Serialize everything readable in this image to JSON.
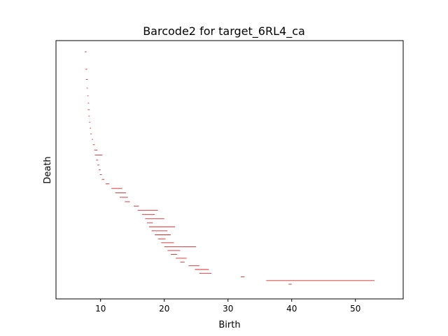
{
  "chart_data": {
    "type": "barcode",
    "title": "Barcode2 for target_6RL4_ca",
    "xlabel": "Birth",
    "ylabel": "Death",
    "xlim": [
      3,
      57.5
    ],
    "x_ticks": [
      10,
      20,
      30,
      40,
      50
    ],
    "y_ticks": [],
    "bar_color": "#d62728",
    "bars_count_description": "persistence bars stacked vertically, each bar spans [birth, death-visual-end]",
    "bars": [
      {
        "birth": 7.5,
        "end": 7.8
      },
      {
        "birth": 7.6,
        "end": 7.9
      },
      {
        "birth": 7.7,
        "end": 8.0
      },
      {
        "birth": 7.8,
        "end": 8.0
      },
      {
        "birth": 7.9,
        "end": 8.1
      },
      {
        "birth": 8.0,
        "end": 8.2
      },
      {
        "birth": 8.0,
        "end": 8.3
      },
      {
        "birth": 8.1,
        "end": 8.3
      },
      {
        "birth": 8.2,
        "end": 8.4
      },
      {
        "birth": 8.3,
        "end": 8.5
      },
      {
        "birth": 8.4,
        "end": 8.6
      },
      {
        "birth": 8.6,
        "end": 8.8
      },
      {
        "birth": 8.8,
        "end": 9.1
      },
      {
        "birth": 9.0,
        "end": 9.5
      },
      {
        "birth": 9.1,
        "end": 10.3
      },
      {
        "birth": 9.3,
        "end": 9.6
      },
      {
        "birth": 9.5,
        "end": 9.8
      },
      {
        "birth": 9.7,
        "end": 10.0
      },
      {
        "birth": 9.9,
        "end": 10.2
      },
      {
        "birth": 10.2,
        "end": 10.6
      },
      {
        "birth": 10.8,
        "end": 11.4
      },
      {
        "birth": 11.7,
        "end": 13.4
      },
      {
        "birth": 12.3,
        "end": 14.0
      },
      {
        "birth": 13.0,
        "end": 14.3
      },
      {
        "birth": 13.8,
        "end": 14.6
      },
      {
        "birth": 15.2,
        "end": 16.0
      },
      {
        "birth": 15.8,
        "end": 19.0
      },
      {
        "birth": 16.5,
        "end": 18.5
      },
      {
        "birth": 17.0,
        "end": 20.0
      },
      {
        "birth": 17.3,
        "end": 18.2
      },
      {
        "birth": 17.6,
        "end": 21.7
      },
      {
        "birth": 18.0,
        "end": 20.5
      },
      {
        "birth": 18.5,
        "end": 21.0
      },
      {
        "birth": 19.0,
        "end": 20.2
      },
      {
        "birth": 19.5,
        "end": 21.5
      },
      {
        "birth": 20.0,
        "end": 25.0
      },
      {
        "birth": 20.5,
        "end": 22.5
      },
      {
        "birth": 21.0,
        "end": 22.0
      },
      {
        "birth": 21.8,
        "end": 23.5
      },
      {
        "birth": 22.5,
        "end": 23.2
      },
      {
        "birth": 23.8,
        "end": 25.5
      },
      {
        "birth": 24.8,
        "end": 27.0
      },
      {
        "birth": 25.5,
        "end": 27.4
      },
      {
        "birth": 32.0,
        "end": 32.6
      },
      {
        "birth": 36.0,
        "end": 53.0
      },
      {
        "birth": 39.5,
        "end": 40.0
      }
    ]
  }
}
